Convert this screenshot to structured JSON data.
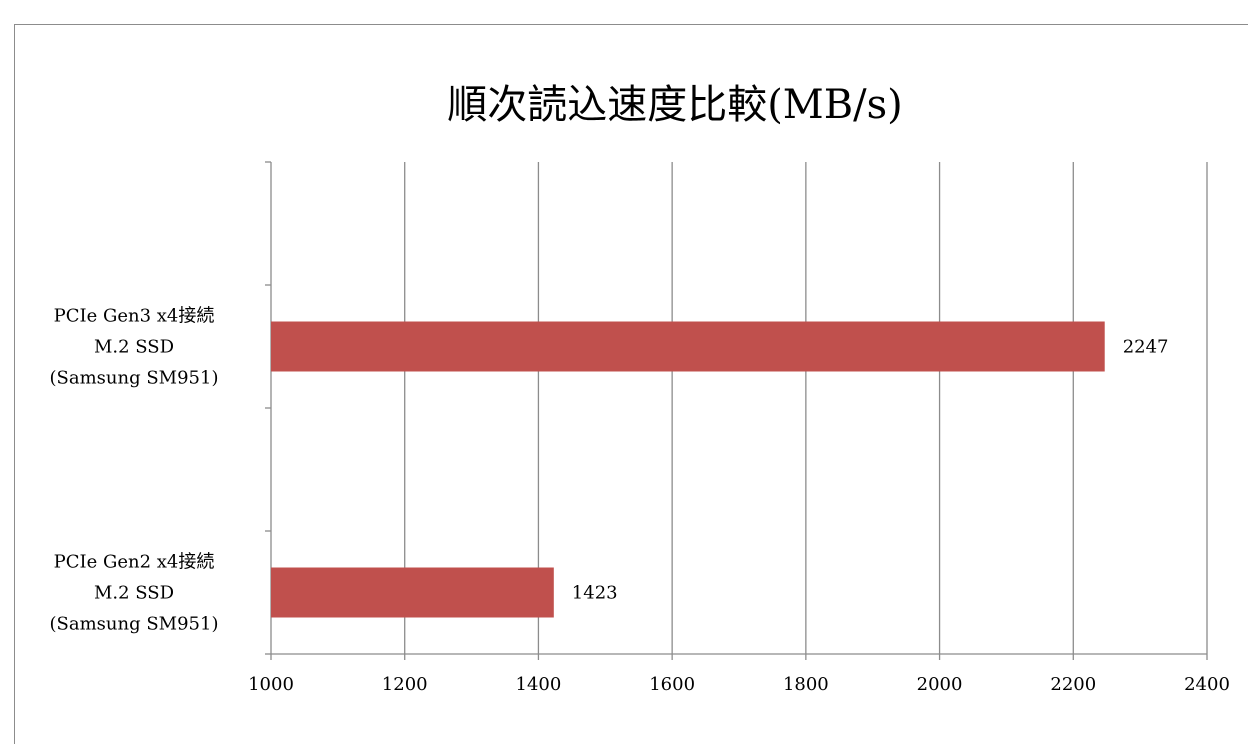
{
  "chart_data": {
    "type": "bar",
    "orientation": "horizontal",
    "title": "順次読込速度比較(MB/s)",
    "categories": [
      [
        "PCIe Gen3 x4接続",
        "M.2 SSD",
        "(Samsung SM951)"
      ],
      [
        "PCIe Gen2 x4接続",
        "M.2 SSD",
        "(Samsung SM951)"
      ]
    ],
    "values": [
      2247,
      1423
    ],
    "data_labels": [
      "2247",
      "1423"
    ],
    "xlim": [
      1000,
      2400
    ],
    "xticks": [
      1000,
      1200,
      1400,
      1600,
      1800,
      2000,
      2200,
      2400
    ],
    "xtick_labels": [
      "1000",
      "1200",
      "1400",
      "1600",
      "1800",
      "2000",
      "2200",
      "2400"
    ],
    "grid": "vertical",
    "legend": "none",
    "bar_color": "#c0504d"
  }
}
